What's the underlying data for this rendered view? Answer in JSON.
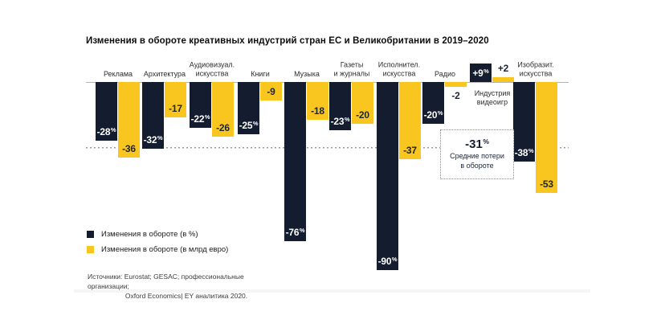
{
  "title": "Изменения в обороте креативных индустрий стран ЕС и Великобритании в 2019–2020",
  "chart_data": {
    "type": "bar",
    "categories": [
      "Реклама",
      "Архитектура",
      "Аудиовизуал.\nискусства",
      "Книги",
      "Музыка",
      "Газеты\nи журналы",
      "Исполнител.\nискусства",
      "Радио",
      "Индустрия\nвидеоигр",
      "Изобразит.\nискусства"
    ],
    "series": [
      {
        "name": "Изменения в обороте (в %)",
        "unit": "%",
        "color": "#141D2F",
        "values": [
          -28,
          -32,
          -22,
          -25,
          -76,
          -23,
          -90,
          -20,
          9,
          -38
        ],
        "labels": [
          "-28%",
          "-32%",
          "-22%",
          "-25%",
          "-76%",
          "-23%",
          "-90%",
          "-20%",
          "+9%",
          "-38%"
        ]
      },
      {
        "name": "Изменения в обороте (в млрд евро)",
        "unit": "млрд евро",
        "color": "#F8C61F",
        "values": [
          -36,
          -17,
          -26,
          -9,
          -18,
          -20,
          -37,
          -2,
          2,
          -53
        ],
        "labels": [
          "-36",
          "-17",
          "-26",
          "-9",
          "-18",
          "-20",
          "-37",
          "-2",
          "+2",
          "-53"
        ]
      }
    ],
    "baseline": 0,
    "average_line": {
      "value": -31,
      "label": "-31%",
      "caption": "Средние потери\nв обороте"
    },
    "legend_position": "bottom-left",
    "grid": "off"
  },
  "legend": {
    "items": [
      {
        "label": "Изменения в обороте (в %)",
        "color": "#141D2F"
      },
      {
        "label": "Изменения в обороте (в млрд евро)",
        "color": "#F8C61F"
      }
    ]
  },
  "sources": {
    "line1": "Источники: Eurostat; GESAC; профессиональные организации;",
    "line2": "Oxford Economics| EY аналитика 2020."
  }
}
